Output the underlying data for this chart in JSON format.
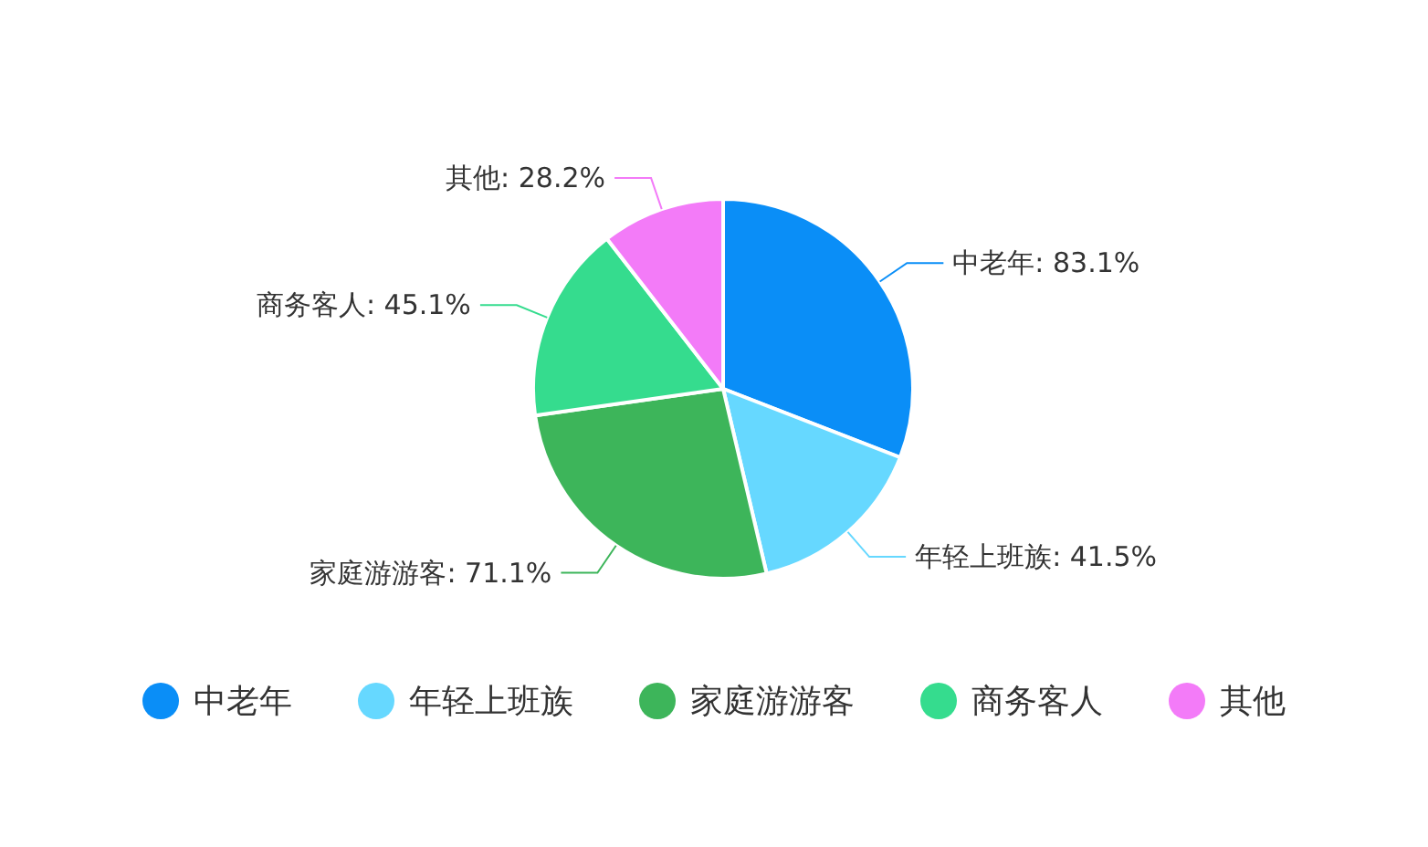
{
  "chart_data": {
    "type": "pie",
    "categories": [
      "中老年",
      "年轻上班族",
      "家庭游游客",
      "商务客人",
      "其他"
    ],
    "values": [
      83.1,
      41.5,
      71.1,
      45.1,
      28.2
    ],
    "value_labels": [
      ": 83.1%",
      ": 41.5%",
      ": 71.1%",
      ": 45.1%",
      ": 28.2%"
    ],
    "colors": [
      "#0a8ef7",
      "#66d8ff",
      "#3db55a",
      "#35dc8e",
      "#f37bf8"
    ],
    "legend": "bottom"
  }
}
